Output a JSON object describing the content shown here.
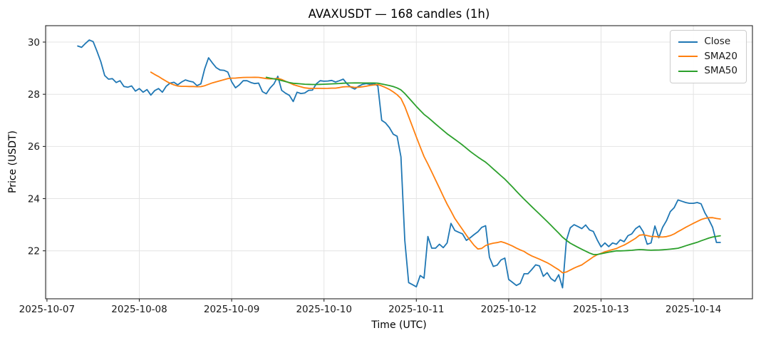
{
  "chart_data": {
    "type": "line",
    "title": "AVAXUSDT — 168 candles (1h)",
    "xlabel": "Time (UTC)",
    "ylabel": "Price (USDT)",
    "symbol": "AVAXUSDT",
    "candle_count": 168,
    "interval": "1h",
    "x_start_utc": "2025-10-07 08:00",
    "x_step_hours": 1,
    "grid": true,
    "legend_position": "upper right",
    "xlim_index": [
      -8.35,
      175.35
    ],
    "ylim": [
      20.16,
      30.63
    ],
    "y_ticks": [
      22,
      24,
      26,
      28,
      30
    ],
    "x_ticks": [
      {
        "label": "2025-10-07",
        "index": -8
      },
      {
        "label": "2025-10-08",
        "index": 16
      },
      {
        "label": "2025-10-09",
        "index": 40
      },
      {
        "label": "2025-10-10",
        "index": 64
      },
      {
        "label": "2025-10-11",
        "index": 88
      },
      {
        "label": "2025-10-12",
        "index": 112
      },
      {
        "label": "2025-10-13",
        "index": 136
      },
      {
        "label": "2025-10-14",
        "index": 160
      }
    ],
    "series": [
      {
        "name": "Close",
        "color": "#1f77b4",
        "kind": "raw",
        "values": [
          29.85,
          29.8,
          29.95,
          30.08,
          30.02,
          29.65,
          29.25,
          28.72,
          28.58,
          28.6,
          28.45,
          28.52,
          28.3,
          28.27,
          28.32,
          28.12,
          28.22,
          28.08,
          28.18,
          27.97,
          28.14,
          28.22,
          28.08,
          28.31,
          28.43,
          28.46,
          28.36,
          28.47,
          28.55,
          28.5,
          28.47,
          28.33,
          28.4,
          28.98,
          29.4,
          29.2,
          29.02,
          28.93,
          28.92,
          28.85,
          28.48,
          28.25,
          28.36,
          28.52,
          28.52,
          28.45,
          28.41,
          28.43,
          28.1,
          28.02,
          28.24,
          28.4,
          28.69,
          28.15,
          28.04,
          27.96,
          27.72,
          28.08,
          28.03,
          28.05,
          28.15,
          28.16,
          28.4,
          28.52,
          28.5,
          28.51,
          28.53,
          28.47,
          28.52,
          28.58,
          28.4,
          28.27,
          28.2,
          28.31,
          28.38,
          28.41,
          28.38,
          28.41,
          28.32,
          27.0,
          26.9,
          26.72,
          26.47,
          26.39,
          25.6,
          22.4,
          20.78,
          20.7,
          20.62,
          21.05,
          20.95,
          22.55,
          22.1,
          22.1,
          22.25,
          22.12,
          22.3,
          23.05,
          22.78,
          22.71,
          22.65,
          22.4,
          22.5,
          22.62,
          22.73,
          22.9,
          22.96,
          21.75,
          21.4,
          21.45,
          21.65,
          21.72,
          20.9,
          20.79,
          20.67,
          20.75,
          21.12,
          21.12,
          21.28,
          21.46,
          21.42,
          21.02,
          21.16,
          20.93,
          20.83,
          21.08,
          20.58,
          22.4,
          22.88,
          23.0,
          22.93,
          22.85,
          22.99,
          22.8,
          22.74,
          22.42,
          22.15,
          22.3,
          22.16,
          22.3,
          22.25,
          22.42,
          22.35,
          22.58,
          22.65,
          22.85,
          22.95,
          22.72,
          22.25,
          22.3,
          22.95,
          22.5,
          22.9,
          23.15,
          23.5,
          23.65,
          23.95,
          23.9,
          23.85,
          23.82,
          23.82,
          23.85,
          23.8,
          23.45,
          23.2,
          22.9,
          22.32,
          22.32
        ]
      },
      {
        "name": "SMA20",
        "color": "#ff7f0e",
        "kind": "sma",
        "window": 20,
        "source": "Close"
      },
      {
        "name": "SMA50",
        "color": "#2ca02c",
        "kind": "sma",
        "window": 50,
        "source": "Close"
      }
    ]
  }
}
